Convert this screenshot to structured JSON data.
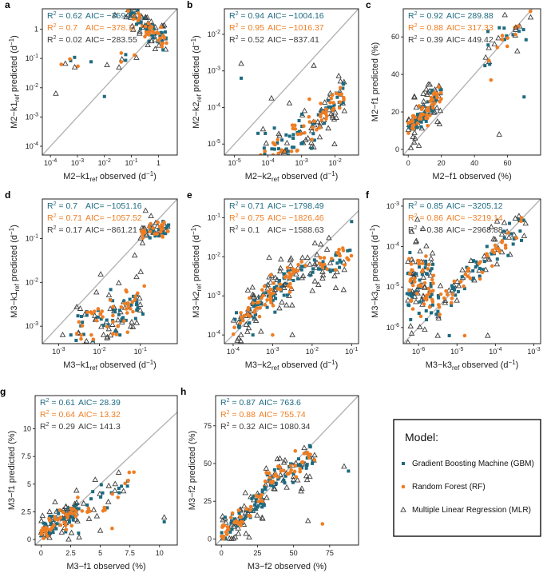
{
  "colors": {
    "gbm": "#1d6a80",
    "rf": "#ef7d22",
    "mlr": "#3c3c3c",
    "identity": "#b4b4b4"
  },
  "legend": {
    "title": "Model:",
    "items": [
      {
        "key": "gbm",
        "label": "Gradient Boosting Machine (GBM)",
        "marker": "square"
      },
      {
        "key": "rf",
        "label": "Random Forest (RF)",
        "marker": "circle"
      },
      {
        "key": "mlr",
        "label": "Multiple Linear Regression (MLR)",
        "marker": "triangle"
      }
    ]
  },
  "chart_data": [
    {
      "id": "a",
      "type": "scatter",
      "scale": "log",
      "xlim": [
        5e-05,
        5
      ],
      "ylim": [
        5e-05,
        5
      ],
      "ticks": [
        0.0001,
        0.001,
        0.01,
        0.1,
        1
      ],
      "tick_labels": [
        "10",
        "10",
        "10",
        "10",
        "1"
      ],
      "tick_exps": [
        "-4",
        "-3",
        "-2",
        "-1",
        ""
      ],
      "ylabel": {
        "pre": "M2−k1",
        "sub": "ref",
        "post": " predicted (d",
        "sup": "−1",
        "end": ")"
      },
      "xlabel": {
        "pre": "M2−k1",
        "sub": "ref",
        "post": " observed (d",
        "sup": "−1",
        "end": ")"
      },
      "stats": [
        {
          "model": "gbm",
          "r2": "0.62",
          "aic": "AIC= −359.64"
        },
        {
          "model": "rf",
          "r2": "0.7",
          "aic": "AIC= −378.11"
        },
        {
          "model": "mlr",
          "r2": "0.02",
          "aic": "AIC= −283.55"
        }
      ],
      "clusters": [
        [
          -4,
          -0.8,
          0.1,
          -0.8,
          0.15,
          5
        ],
        [
          -2.3,
          -0.3,
          -1.0,
          -0.4,
          0.2,
          40
        ],
        [
          -0.5,
          0.3,
          -0.8,
          -0.2,
          0.2,
          18
        ]
      ],
      "outliers": [
        [
          -3.8,
          -2.2
        ],
        [
          -2.0,
          -2.3
        ],
        [
          -3.6,
          -1.2
        ],
        [
          -3.1,
          -1.3
        ]
      ]
    },
    {
      "id": "b",
      "type": "scatter",
      "scale": "log",
      "xlim": [
        5e-06,
        0.05
      ],
      "ylim": [
        5e-06,
        0.05
      ],
      "ticks": [
        1e-05,
        0.0001,
        0.001,
        0.01
      ],
      "tick_labels": [
        "10",
        "10",
        "10",
        "10"
      ],
      "tick_exps": [
        "-5",
        "-4",
        "-3",
        "-2"
      ],
      "ylabel": {
        "pre": "M2−k2",
        "sub": "ref",
        "post": " predicted (d",
        "sup": "−1",
        "end": ")"
      },
      "xlabel": {
        "pre": "M2−k2",
        "sub": "ref",
        "post": " observed (d",
        "sup": "−1",
        "end": ")"
      },
      "stats": [
        {
          "model": "gbm",
          "r2": "0.94",
          "aic": "AIC= −1004.16"
        },
        {
          "model": "rf",
          "r2": "0.95",
          "aic": "AIC= −1016.37"
        },
        {
          "model": "mlr",
          "r2": "0.52",
          "aic": "AIC= −837.41"
        }
      ],
      "clusters": [
        [
          -4.3,
          -2.5,
          0.6,
          -3.0,
          0.4,
          40
        ],
        [
          -2.5,
          -1.7,
          1.0,
          -1.9,
          0.25,
          25
        ]
      ],
      "outliers": [
        [
          -3.5,
          -5.2
        ],
        [
          -3.4,
          -5.2
        ],
        [
          -3.3,
          -5.2
        ],
        [
          -4.8,
          -2.8
        ],
        [
          -4.8,
          -3.2
        ]
      ]
    },
    {
      "id": "c",
      "type": "scatter",
      "scale": "lin",
      "xlim": [
        -3,
        80
      ],
      "ylim": [
        -3,
        75
      ],
      "ticks": [
        0,
        20,
        40,
        60
      ],
      "tick_labels": [
        "0",
        "20",
        "40",
        "60"
      ],
      "tick_exps": [
        "",
        "",
        "",
        ""
      ],
      "ylabel": {
        "pre": "M2−f1 predicted (%)",
        "sub": "",
        "post": "",
        "sup": "",
        "end": ""
      },
      "xlabel": {
        "pre": "M2−f1 observed (%)",
        "sub": "",
        "post": "",
        "sup": "",
        "end": ""
      },
      "stats": [
        {
          "model": "gbm",
          "r2": "0.92",
          "aic": "AIC= 289.88"
        },
        {
          "model": "rf",
          "r2": "0.88",
          "aic": "AIC= 317.33"
        },
        {
          "model": "mlr",
          "r2": "0.39",
          "aic": "AIC= 449.42"
        }
      ],
      "clusters": [
        [
          0,
          20,
          1.0,
          10,
          4,
          50
        ],
        [
          45,
          75,
          1.0,
          0,
          6,
          12
        ]
      ],
      "outliers": [
        [
          65,
          65
        ],
        [
          67,
          63
        ],
        [
          50,
          37
        ],
        [
          55,
          8
        ],
        [
          70,
          28
        ]
      ]
    },
    {
      "id": "d",
      "type": "scatter",
      "scale": "log",
      "xlim": [
        0.0004,
        0.8
      ],
      "ylim": [
        0.0004,
        0.8
      ],
      "ticks": [
        0.001,
        0.01,
        0.1
      ],
      "tick_labels": [
        "10",
        "10",
        "10"
      ],
      "tick_exps": [
        "-3",
        "-2",
        "-1"
      ],
      "ylabel": {
        "pre": "M3−k1",
        "sub": "ref",
        "post": " predicted (d",
        "sup": "−1",
        "end": ")"
      },
      "xlabel": {
        "pre": "M3−k1",
        "sub": "ref",
        "post": " observed (d",
        "sup": "−1",
        "end": ")"
      },
      "stats": [
        {
          "model": "gbm",
          "r2": "0.7",
          "aic": "AIC= −1051.16"
        },
        {
          "model": "rf",
          "r2": "0.71",
          "aic": "AIC= −1057.52"
        },
        {
          "model": "mlr",
          "r2": "0.17",
          "aic": "AIC= −861.21"
        }
      ],
      "clusters": [
        [
          -2.6,
          -0.9,
          0.5,
          -1.9,
          0.3,
          45
        ],
        [
          -1.0,
          -0.3,
          0.1,
          -0.75,
          0.1,
          25
        ]
      ],
      "outliers": [
        [
          -2.9,
          -3.2
        ],
        [
          -2.7,
          -3.2
        ],
        [
          -2.2,
          -3.2
        ],
        [
          -1.9,
          -3.2
        ],
        [
          -1.5,
          -3.2
        ]
      ]
    },
    {
      "id": "e",
      "type": "scatter",
      "scale": "log",
      "xlim": [
        6e-05,
        0.15
      ],
      "ylim": [
        6e-05,
        0.3
      ],
      "ticks": [
        0.0001,
        0.001,
        0.01,
        0.1
      ],
      "tick_labels": [
        "10",
        "10",
        "10",
        "10"
      ],
      "tick_exps": [
        "-4",
        "-3",
        "-2",
        "-1"
      ],
      "ylabel": {
        "pre": "M3−k2",
        "sub": "ref",
        "post": " predicted (d",
        "sup": "−1",
        "end": ")"
      },
      "xlabel": {
        "pre": "M3−k2",
        "sub": "ref",
        "post": " observed (d",
        "sup": "−1",
        "end": ")"
      },
      "stats": [
        {
          "model": "gbm",
          "r2": "0.71",
          "aic": "AIC= −1798.49"
        },
        {
          "model": "rf",
          "r2": "0.75",
          "aic": "AIC= −1826.46"
        },
        {
          "model": "mlr",
          "r2": "0.1",
          "aic": "AIC= −1588.63"
        }
      ],
      "clusters": [
        [
          -4.0,
          -2.5,
          0.9,
          -0.2,
          0.25,
          55
        ],
        [
          -2.5,
          -1.0,
          0.3,
          -1.7,
          0.2,
          30
        ]
      ],
      "outliers": [
        [
          -3.8,
          -4.0
        ],
        [
          -3.5,
          -4.0
        ],
        [
          -3.0,
          -4.0
        ],
        [
          -2.5,
          -4.0
        ],
        [
          -1.0,
          -1.1
        ]
      ]
    },
    {
      "id": "f",
      "type": "scatter",
      "scale": "log",
      "xlim": [
        4e-07,
        0.0015
      ],
      "ylim": [
        4e-07,
        0.0015
      ],
      "ticks": [
        1e-06,
        1e-05,
        0.0001,
        0.001
      ],
      "tick_labels": [
        "10",
        "10",
        "10",
        "10"
      ],
      "tick_exps": [
        "-6",
        "-5",
        "-4",
        "-3"
      ],
      "ylabel": {
        "pre": "M3−k3",
        "sub": "ref",
        "post": " predicted (d",
        "sup": "−1",
        "end": ")"
      },
      "xlabel": {
        "pre": "M3−k3",
        "sub": "ref",
        "post": " observed (d",
        "sup": "−1",
        "end": ")"
      },
      "stats": [
        {
          "model": "gbm",
          "r2": "0.85",
          "aic": "AIC= −3205.12"
        },
        {
          "model": "rf",
          "r2": "0.86",
          "aic": "AIC= −3219.14"
        },
        {
          "model": "mlr",
          "r2": "0.38",
          "aic": "AIC= −2968.88"
        }
      ],
      "clusters": [
        [
          -6.3,
          -5.6,
          0,
          -5.0,
          0.5,
          45
        ],
        [
          -5.6,
          -3.2,
          0.9,
          -0.5,
          0.2,
          40
        ]
      ],
      "outliers": [
        [
          -5.5,
          -6.2
        ],
        [
          -5.2,
          -6.2
        ],
        [
          -4.8,
          -6.2
        ],
        [
          -4.2,
          -6.2
        ]
      ]
    },
    {
      "id": "g",
      "type": "scatter",
      "scale": "lin",
      "xlim": [
        -0.5,
        11.5
      ],
      "ylim": [
        -0.5,
        13
      ],
      "ticks": [
        0,
        2.5,
        5,
        7.5,
        10
      ],
      "tick_labels": [
        "0",
        "2.5",
        "5",
        "7.5",
        "10"
      ],
      "tick_exps": [
        "",
        "",
        "",
        "",
        ""
      ],
      "ylabel": {
        "pre": "M3−f1 predicted (%)",
        "sub": "",
        "post": "",
        "sup": "",
        "end": ""
      },
      "xlabel": {
        "pre": "M3−f1 observed (%)",
        "sub": "",
        "post": "",
        "sup": "",
        "end": ""
      },
      "stats": [
        {
          "model": "gbm",
          "r2": "0.61",
          "aic": "AIC= 28.39"
        },
        {
          "model": "rf",
          "r2": "0.64",
          "aic": "AIC= 13.32"
        },
        {
          "model": "mlr",
          "r2": "0.29",
          "aic": "AIC= 141.3"
        }
      ],
      "clusters": [
        [
          0,
          3,
          0.6,
          0.7,
          0.6,
          45
        ],
        [
          3,
          8,
          0.6,
          0.8,
          0.8,
          15
        ]
      ],
      "outliers": [
        [
          10.4,
          2.0
        ],
        [
          10.4,
          1.6
        ],
        [
          6,
          1.0
        ],
        [
          5,
          0.8
        ]
      ]
    },
    {
      "id": "h",
      "type": "scatter",
      "scale": "lin",
      "xlim": [
        -4,
        95
      ],
      "ylim": [
        -4,
        95
      ],
      "ticks": [
        0,
        25,
        50,
        75
      ],
      "tick_labels": [
        "0",
        "25",
        "50",
        "75"
      ],
      "tick_exps": [
        "",
        "",
        "",
        ""
      ],
      "ylabel": {
        "pre": "M3−f2 predicted (%)",
        "sub": "",
        "post": "",
        "sup": "",
        "end": ""
      },
      "xlabel": {
        "pre": "M3−f2 observed (%)",
        "sub": "",
        "post": "",
        "sup": "",
        "end": ""
      },
      "stats": [
        {
          "model": "gbm",
          "r2": "0.87",
          "aic": "AIC= 763.6"
        },
        {
          "model": "rf",
          "r2": "0.88",
          "aic": "AIC= 755.74"
        },
        {
          "model": "mlr",
          "r2": "0.32",
          "aic": "AIC= 1080.34"
        }
      ],
      "clusters": [
        [
          0,
          30,
          0.8,
          3,
          5,
          40
        ],
        [
          30,
          65,
          0.4,
          27,
          5,
          35
        ]
      ],
      "outliers": [
        [
          85,
          48
        ],
        [
          88,
          45
        ],
        [
          70,
          10
        ],
        [
          60,
          12
        ]
      ]
    }
  ]
}
